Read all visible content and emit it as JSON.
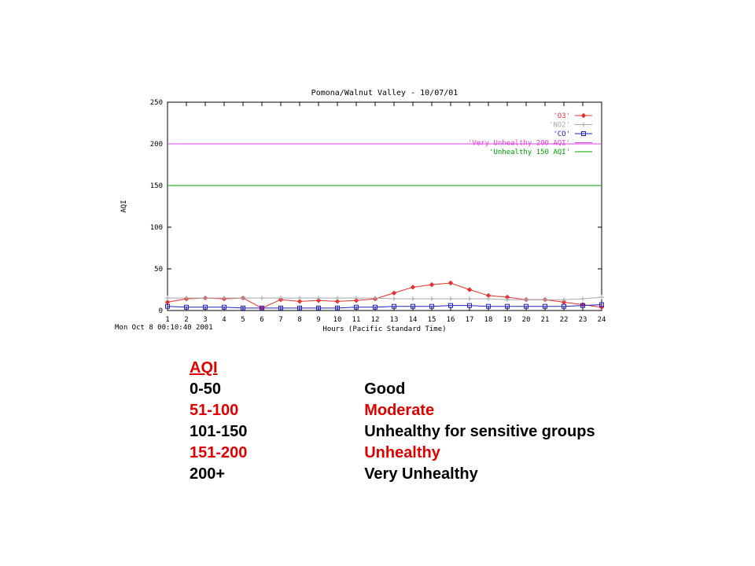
{
  "chart_data": {
    "type": "line",
    "title": "Pomona/Walnut Valley - 10/07/01",
    "xlabel": "Hours (Pacific Standard Time)",
    "ylabel": "AQI",
    "timestamp": "Mon Oct  8 00:10:40 2001",
    "x": [
      1,
      2,
      3,
      4,
      5,
      6,
      7,
      8,
      9,
      10,
      11,
      12,
      13,
      14,
      15,
      16,
      17,
      18,
      19,
      20,
      21,
      22,
      23,
      24
    ],
    "xlim": [
      1,
      24
    ],
    "ylim": [
      0,
      250
    ],
    "yticks": [
      0,
      50,
      100,
      150,
      200,
      250
    ],
    "grid": false,
    "legend_position": "top-right",
    "series": [
      {
        "name": "'O3'",
        "color": "#e83030",
        "marker": "diamond",
        "values": [
          10,
          14,
          15,
          14,
          15,
          3,
          13,
          11,
          12,
          11,
          12,
          14,
          21,
          28,
          31,
          33,
          25,
          18,
          16,
          13,
          13,
          10,
          7,
          4
        ]
      },
      {
        "name": "'NO2'",
        "color": "#a8a8a8",
        "marker": "plus",
        "values": [
          15,
          15,
          15,
          15,
          15,
          15,
          15,
          15,
          15,
          15,
          15,
          15,
          14,
          14,
          14,
          14,
          14,
          14,
          13,
          13,
          13,
          13,
          14,
          16
        ]
      },
      {
        "name": "'CO'",
        "color": "#2020c0",
        "marker": "square",
        "values": [
          5,
          4,
          4,
          4,
          3,
          3,
          3,
          3,
          3,
          3,
          4,
          4,
          5,
          5,
          5,
          6,
          6,
          5,
          5,
          5,
          5,
          5,
          6,
          7
        ]
      }
    ],
    "reference_lines": [
      {
        "name": "'Very Unhealthy 200 AQI'",
        "color": "#e040e0",
        "value": 200
      },
      {
        "name": "'Unhealthy 150 AQI'",
        "color": "#00a000",
        "value": 150
      }
    ]
  },
  "aqi_legend": {
    "title": "AQI",
    "rows": [
      {
        "range": "0-50",
        "label": "Good",
        "color": "black"
      },
      {
        "range": "51-100",
        "label": "Moderate",
        "color": "red"
      },
      {
        "range": "101-150",
        "label": "Unhealthy for sensitive groups",
        "color": "black"
      },
      {
        "range": "151-200",
        "label": "Unhealthy",
        "color": "red"
      },
      {
        "range": "200+",
        "label": "Very Unhealthy",
        "color": "black"
      }
    ]
  }
}
